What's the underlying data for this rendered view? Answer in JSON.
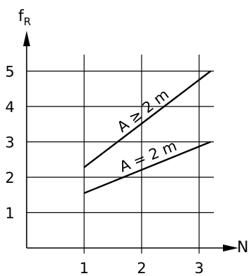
{
  "chart_data": {
    "type": "line",
    "ylabel": "f",
    "ylabel_sub": "R",
    "xlabel": "N",
    "xlim": [
      0,
      3.3
    ],
    "ylim": [
      0,
      5.5
    ],
    "x_ticks": [
      1,
      2,
      3
    ],
    "y_ticks": [
      1,
      2,
      3,
      4,
      5
    ],
    "grid": true,
    "series": [
      {
        "name": "A ≥ 2 m",
        "x": [
          1,
          3.2
        ],
        "y": [
          2.28,
          5.0
        ]
      },
      {
        "name": "A = 2 m",
        "x": [
          1,
          3.2
        ],
        "y": [
          1.55,
          3.0
        ]
      }
    ]
  }
}
